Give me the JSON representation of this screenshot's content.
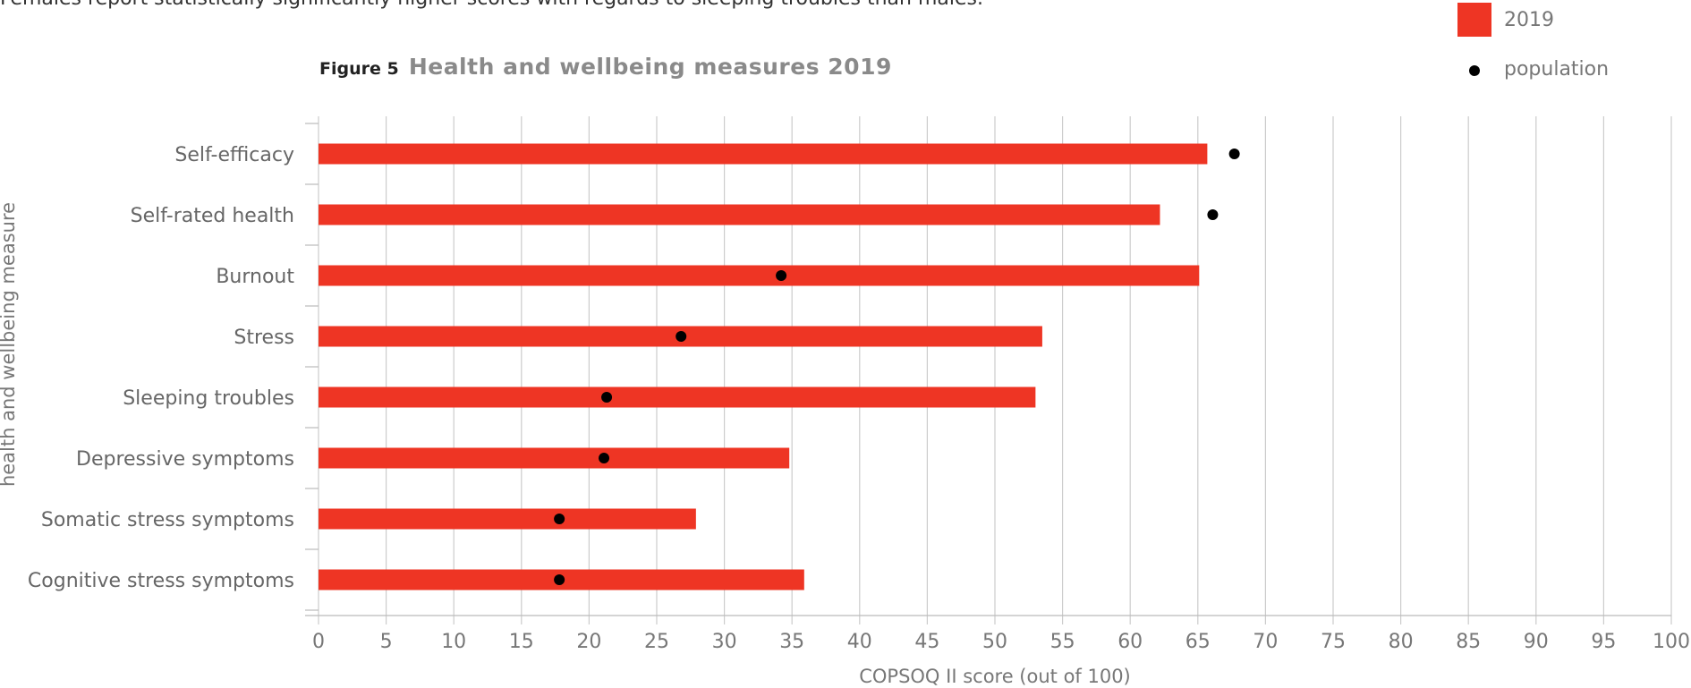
{
  "intro_text": "Females report statistically significantly higher scores with regards to sleeping troubles than males.",
  "figure": {
    "label": "Figure 5",
    "title": "Health and wellbeing measures 2019"
  },
  "chart_data": {
    "type": "bar",
    "orientation": "horizontal",
    "title": "Health and wellbeing measures 2019",
    "xlabel": "COPSOQ II score (out of 100)",
    "ylabel": "health and wellbeing measure",
    "xlim": [
      0,
      100
    ],
    "xticks": [
      0,
      5,
      10,
      15,
      20,
      25,
      30,
      35,
      40,
      45,
      50,
      55,
      60,
      65,
      70,
      75,
      80,
      85,
      90,
      95,
      100
    ],
    "grid": true,
    "legend_position": "top-right",
    "categories": [
      "Self-efficacy",
      "Self-rated health",
      "Burnout",
      "Stress",
      "Sleeping troubles",
      "Depressive symptoms",
      "Somatic stress symptoms",
      "Cognitive stress symptoms"
    ],
    "series": [
      {
        "name": "2019",
        "kind": "bar",
        "color": "#ee3524",
        "values": [
          65.7,
          62.2,
          65.1,
          53.5,
          53.0,
          34.8,
          27.9,
          35.9
        ]
      },
      {
        "name": "population",
        "kind": "point",
        "color": "#000000",
        "values": [
          67.7,
          66.1,
          34.2,
          26.8,
          21.3,
          21.1,
          17.8,
          17.8
        ]
      }
    ]
  }
}
